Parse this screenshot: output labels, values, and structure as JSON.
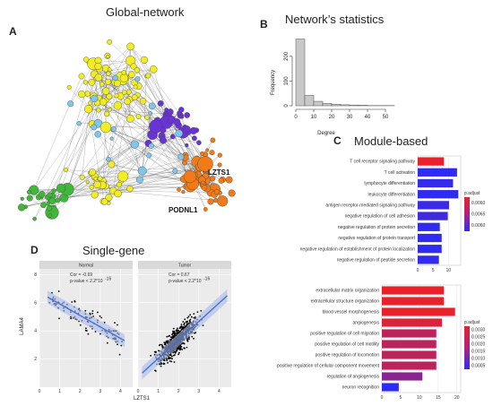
{
  "panels": {
    "A": {
      "letter": "A",
      "title": "Global-network",
      "labels": [
        "LZTS1",
        "PODNL1"
      ]
    },
    "B": {
      "letter": "B",
      "title": "Network’s statistics"
    },
    "C": {
      "letter": "C",
      "title": "Module-based"
    },
    "D": {
      "letter": "D",
      "title": "Single-gene"
    }
  },
  "chart_data": [
    {
      "type": "bar",
      "panel": "B",
      "xlabel": "Degree",
      "ylabel": "Frequency",
      "x_ticks": [
        "0",
        "10",
        "20",
        "30",
        "40",
        "50"
      ],
      "y_ticks": [
        "0",
        "100",
        "200"
      ],
      "xlim": [
        0,
        55
      ],
      "ylim": [
        0,
        290
      ],
      "bins": [
        {
          "x0": 0,
          "x1": 5,
          "value": 270
        },
        {
          "x0": 5,
          "x1": 10,
          "value": 42
        },
        {
          "x0": 10,
          "x1": 15,
          "value": 18
        },
        {
          "x0": 15,
          "x1": 20,
          "value": 10
        },
        {
          "x0": 20,
          "x1": 25,
          "value": 6
        },
        {
          "x0": 25,
          "x1": 30,
          "value": 4
        },
        {
          "x0": 30,
          "x1": 35,
          "value": 3
        },
        {
          "x0": 35,
          "x1": 40,
          "value": 2
        },
        {
          "x0": 40,
          "x1": 45,
          "value": 1
        },
        {
          "x0": 45,
          "x1": 50,
          "value": 1
        },
        {
          "x0": 50,
          "x1": 55,
          "value": 1
        }
      ],
      "colors": {
        "bar": "#c8c8c8",
        "stroke": "#555555"
      }
    },
    {
      "type": "bar",
      "panel": "C-top",
      "orientation": "horizontal",
      "categories": [
        "T cell receptor signaling pathway",
        "T cell activation",
        "lymphocyte differentiation",
        "leukocyte differentiation",
        "antigen receptor-mediated signaling pathway",
        "negative regulation of cell adhesion",
        "negative regulation of protein secretion",
        "negative regulation of protein transport",
        "negative regulation of establishment of protein localization",
        "negative regulation of peptide secretion"
      ],
      "values": [
        8.5,
        12.8,
        11.5,
        13.2,
        10.2,
        9.8,
        7.2,
        7.8,
        7.8,
        6.9
      ],
      "padjust": [
        0.0004,
        0.0068,
        0.0066,
        0.0068,
        0.0064,
        0.0062,
        0.0068,
        0.0068,
        0.0068,
        0.0068
      ],
      "x_ticks": [
        "0",
        "5",
        "10"
      ],
      "xlim": [
        0,
        14
      ],
      "legend_title": "p.adjust",
      "legend_ticks": [
        "0.0060",
        "0.0065",
        "0.0060"
      ],
      "colors": {
        "low": "#e8212a",
        "high": "#2f2bf0"
      }
    },
    {
      "type": "bar",
      "panel": "C-bottom",
      "orientation": "horizontal",
      "categories": [
        "extracellular matrix organization",
        "extracellular structure organization",
        "blood vessel morphogenesis",
        "angiogenesis",
        "positive regulation of cell migration",
        "positive regulation of cell motility",
        "positive regulation of locomotion",
        "positive regulation of cellular component movement",
        "regulation of angiogenesis",
        "neuron recognition"
      ],
      "values": [
        16.5,
        16.5,
        19.5,
        16,
        14.5,
        14.5,
        14.5,
        14.5,
        10.8,
        4.5
      ],
      "padjust": [
        0.0001,
        0.0001,
        0.0001,
        0.0003,
        0.0008,
        0.0008,
        0.0008,
        0.0008,
        0.0016,
        0.003
      ],
      "x_ticks": [
        "0",
        "5",
        "10",
        "15",
        "20"
      ],
      "xlim": [
        0,
        21
      ],
      "legend_title": "p.adjust",
      "legend_ticks": [
        "0.0030",
        "0.0025",
        "0.0020",
        "0.0015",
        "0.0010",
        "0.0005"
      ],
      "colors": {
        "low": "#e8212a",
        "high": "#2f2bf0"
      }
    },
    {
      "type": "scatter",
      "panel": "D",
      "facets": [
        "Normal",
        "Tumor"
      ],
      "xlabel": "LZTS1",
      "ylabel": "LAMA4",
      "y_ticks": [
        "2",
        "4",
        "6",
        "8"
      ],
      "x_ticks": [
        "0",
        "1",
        "2",
        "3",
        "4"
      ],
      "xlim": [
        0,
        4.6
      ],
      "ylim": [
        0,
        8.4
      ],
      "annotations": [
        {
          "cor": "Cor = -0.69",
          "p": "p-value < 2.2*10",
          "exp": "-16"
        },
        {
          "cor": "Cor = 0.67",
          "p": "p-value < 2.2*10",
          "exp": "-16"
        }
      ],
      "fits": [
        {
          "x0": 0.4,
          "y0": 6.4,
          "x1": 4.2,
          "y1": 3.3
        },
        {
          "x0": 0.2,
          "y0": 1.0,
          "x1": 4.4,
          "y1": 6.5
        }
      ],
      "colors": {
        "point": "#000000",
        "line": "#3d6fd6",
        "band": "#a9b8e6",
        "panel_bg": "#ebebeb",
        "strip": "#d9d9d9"
      }
    }
  ],
  "network": {
    "colors": {
      "yellow": "#f2ec25",
      "purple": "#6a33d6",
      "orange": "#f07b18",
      "green": "#3fb83a",
      "blue": "#7ec6ec",
      "edge": "#555555"
    }
  }
}
